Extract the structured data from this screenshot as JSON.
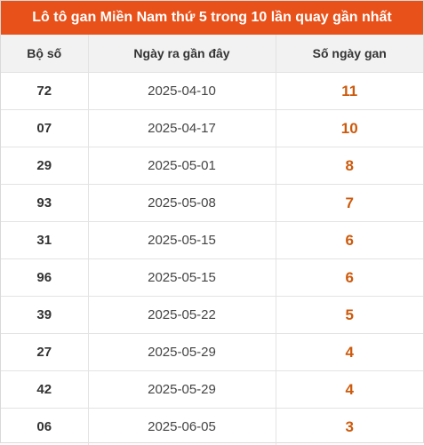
{
  "title": "Lô tô gan Miền Nam thứ 5 trong 10 lần quay gần nhất",
  "headers": {
    "number": "Bộ số",
    "last_date": "Ngày ra gần đây",
    "gan_days": "Số ngày gan"
  },
  "rows": [
    {
      "number": "72",
      "last_date": "2025-04-10",
      "gan_days": "11"
    },
    {
      "number": "07",
      "last_date": "2025-04-17",
      "gan_days": "10"
    },
    {
      "number": "29",
      "last_date": "2025-05-01",
      "gan_days": "8"
    },
    {
      "number": "93",
      "last_date": "2025-05-08",
      "gan_days": "7"
    },
    {
      "number": "31",
      "last_date": "2025-05-15",
      "gan_days": "6"
    },
    {
      "number": "96",
      "last_date": "2025-05-15",
      "gan_days": "6"
    },
    {
      "number": "39",
      "last_date": "2025-05-22",
      "gan_days": "5"
    },
    {
      "number": "27",
      "last_date": "2025-05-29",
      "gan_days": "4"
    },
    {
      "number": "42",
      "last_date": "2025-05-29",
      "gan_days": "4"
    },
    {
      "number": "06",
      "last_date": "2025-06-05",
      "gan_days": "3"
    }
  ],
  "colors": {
    "title_background": "#e8511a",
    "gan_value": "#cc5a0c",
    "header_background": "#f2f2f2"
  }
}
